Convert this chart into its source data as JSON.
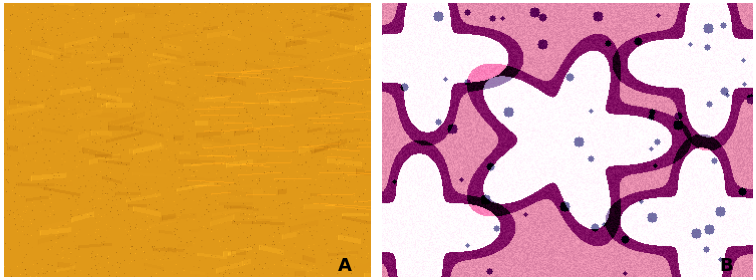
{
  "fig_width": 7.56,
  "fig_height": 2.8,
  "dpi": 100,
  "background_color": "#ffffff",
  "label_A": "A",
  "label_B": "B",
  "label_fontsize": 13,
  "label_color": "#000000",
  "border_color": "#cccccc",
  "image_A_base_color": [
    220,
    160,
    50
  ],
  "image_B_base_color": [
    220,
    100,
    140
  ]
}
